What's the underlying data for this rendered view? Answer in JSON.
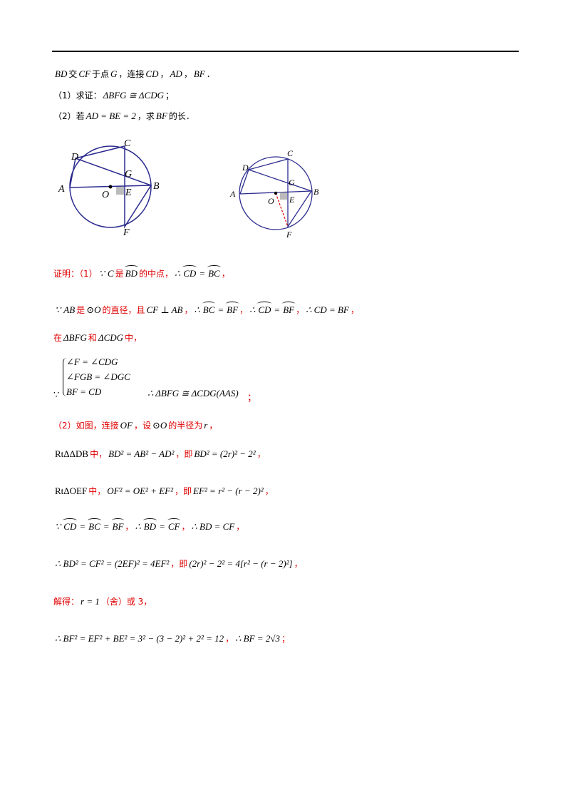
{
  "question": {
    "lines": [
      [
        "BD",
        "交",
        "CF",
        "于点",
        "G",
        "，连接",
        "CD",
        "，",
        "AD",
        "，",
        "BF",
        "．"
      ],
      [
        "（1）求证：",
        "ΔBFG ≅ ΔCDG",
        "；"
      ],
      [
        "（2）若",
        "AD = BE = 2",
        "，求",
        "BF",
        "的长．"
      ]
    ]
  },
  "figures": [
    {
      "labels": [
        "A",
        "B",
        "C",
        "D",
        "E",
        "F",
        "G",
        "O"
      ]
    },
    {
      "labels": [
        "A",
        "B",
        "C",
        "D",
        "E",
        "F",
        "G",
        "O"
      ]
    }
  ],
  "solution": {
    "lines": [
      [
        "证明：（1）",
        "∵",
        "C",
        "是",
        "BD",
        "的中点，",
        "∴",
        "CD",
        "=",
        "BC",
        "，"
      ],
      [
        "∵",
        "AB",
        "是",
        "⊙O",
        "的直径，且",
        "CF ⊥ AB",
        "，",
        "∴",
        "BC",
        "=",
        "BF",
        "，",
        "∴",
        "CD",
        "=",
        "BF",
        "，",
        "∴ CD = BF",
        "，"
      ],
      [
        "在",
        "ΔBFG",
        "和",
        "ΔCDG",
        "中，"
      ],
      [
        "∠F = ∠CDG",
        "∠FGB = ∠DGC",
        "BF = CD",
        "∵",
        "∴ ΔBFG ≅ ΔCDG(AAS)",
        "；"
      ],
      [
        "（2）如图，连接",
        "OF",
        "，设",
        "⊙O",
        "的半径为",
        "r",
        "，"
      ],
      [
        "RtΔΔDB",
        "中，",
        "BD² = AB² − AD²",
        "，即",
        "BD² = (2r)² − 2²",
        "，"
      ],
      [
        "RtΔOEF",
        "中，",
        "OF² = OE² + EF²",
        "，即",
        "EF² = r² − (r − 2)²",
        "，"
      ],
      [
        "∵",
        "CD",
        "=",
        "BC",
        "=",
        "BF",
        "，",
        "∴",
        "BD",
        "=",
        "CF",
        "，",
        "∴ BD = CF",
        "，"
      ],
      [
        "∴ BD² = CF² = (2EF)² = 4EF²",
        "，即",
        "(2r)² − 2² = 4[r² − (r − 2)²]",
        "，"
      ],
      [
        "解得：",
        "r = 1",
        "（舍）或 3，"
      ],
      [
        "∴ BF² = EF² + BE² = 3² − (3 − 2)² + 2² = 12",
        "，",
        "∴ BF = 2√3",
        "；"
      ]
    ]
  }
}
